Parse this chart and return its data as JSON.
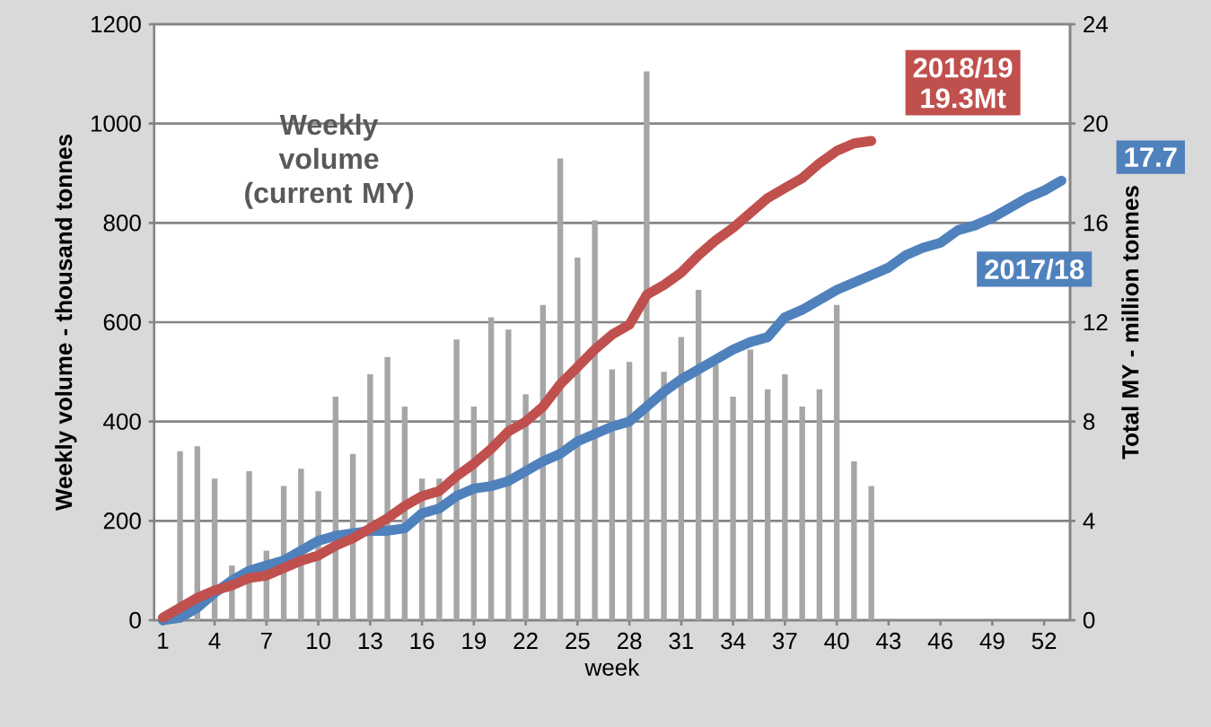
{
  "chart_data": {
    "type": "bar",
    "categories": [
      "1",
      null,
      null,
      "4",
      null,
      null,
      "7",
      null,
      null,
      "10",
      null,
      null,
      "13",
      null,
      null,
      "16",
      null,
      null,
      "19",
      null,
      null,
      "22",
      null,
      null,
      "25",
      null,
      null,
      "28",
      null,
      null,
      "31",
      null,
      null,
      "34",
      null,
      null,
      "37",
      null,
      null,
      "40",
      null,
      null,
      "43",
      null,
      null,
      "46",
      null,
      null,
      "49",
      null,
      null,
      "52",
      null
    ],
    "series": [
      {
        "axis": "y",
        "color": "#a6a6a6",
        "values": [
          null,
          340,
          350,
          285,
          110,
          300,
          140,
          270,
          305,
          260,
          450,
          335,
          495,
          530,
          430,
          285,
          285,
          565,
          430,
          610,
          585,
          455,
          635,
          930,
          730,
          805,
          505,
          520,
          1105,
          500,
          570,
          665,
          515,
          450,
          545,
          465,
          495,
          430,
          465,
          635,
          320,
          270,
          null,
          null,
          null,
          null,
          null,
          null,
          null,
          null,
          null,
          null,
          null
        ]
      },
      {
        "name": "2017/18",
        "type": "line",
        "axis": "y2",
        "color": "#4f81bd",
        "values": [
          0,
          0.1,
          0.5,
          1.1,
          1.6,
          2.0,
          2.2,
          2.4,
          2.8,
          3.2,
          3.4,
          3.5,
          3.6,
          3.6,
          3.7,
          4.3,
          4.5,
          5.0,
          5.3,
          5.4,
          5.6,
          6.0,
          6.4,
          6.7,
          7.2,
          7.5,
          7.8,
          8.0,
          8.6,
          9.2,
          9.7,
          10.1,
          10.5,
          10.9,
          11.2,
          11.4,
          12.2,
          12.5,
          12.9,
          13.3,
          13.6,
          13.9,
          14.2,
          14.7,
          15.0,
          15.2,
          15.7,
          15.9,
          16.2,
          16.6,
          17.0,
          17.3,
          17.7
        ]
      },
      {
        "name": "2018/19",
        "type": "line",
        "axis": "y2",
        "color": "#c0504d",
        "values": [
          0.1,
          0.5,
          0.9,
          1.2,
          1.4,
          1.7,
          1.8,
          2.1,
          2.4,
          2.6,
          3.0,
          3.3,
          3.7,
          4.1,
          4.6,
          5.0,
          5.2,
          5.8,
          6.3,
          6.9,
          7.6,
          8.0,
          8.6,
          9.5,
          10.2,
          10.9,
          11.5,
          11.9,
          13.1,
          13.5,
          14.0,
          14.7,
          15.3,
          15.8,
          16.4,
          17.0,
          17.4,
          17.8,
          18.4,
          18.9,
          19.2,
          19.3,
          null,
          null,
          null,
          null,
          null,
          null,
          null,
          null,
          null,
          null,
          null
        ]
      }
    ],
    "annotations": [
      "Weekly volume (current MY)",
      "19.3Mt",
      "17.7"
    ],
    "xlabel": "week",
    "ylabel": "Weekly volume - thousand tonnes",
    "y2label": "Total MY - million tonnes",
    "ylim": [
      0,
      1200
    ],
    "yticks": [
      0,
      200,
      400,
      600,
      800,
      1000,
      1200
    ],
    "y2lim": [
      0,
      24
    ],
    "y2ticks": [
      0,
      4,
      8,
      12,
      16,
      20,
      24
    ],
    "grid": "y",
    "marker": "none",
    "line_style": "solid"
  }
}
